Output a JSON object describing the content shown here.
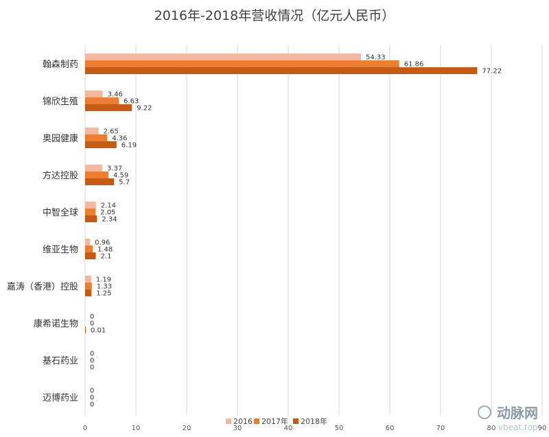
{
  "chart_data": {
    "type": "bar",
    "orientation": "horizontal",
    "title": "2016年-2018年营收情况（亿元人民币）",
    "categories": [
      "翰森制药",
      "锦欣生殖",
      "奥园健康",
      "方达控股",
      "中智全球",
      "维亚生物",
      "嘉涛（香港）控股",
      "康希诺生物",
      "基石药业",
      "迈博药业"
    ],
    "series": [
      {
        "name": "2016",
        "color": "#f4b79f",
        "values": [
          54.33,
          3.46,
          2.65,
          3.37,
          2.14,
          0.96,
          1.19,
          0,
          0,
          0
        ],
        "labels": [
          "54.33",
          "3.46",
          "2.65",
          "3.37",
          "2.14",
          "0.96",
          "1.19",
          "0",
          "0",
          "0"
        ]
      },
      {
        "name": "2017年",
        "color": "#ed7d31",
        "values": [
          61.86,
          6.63,
          4.36,
          4.59,
          2.05,
          1.48,
          1.33,
          0,
          0,
          0
        ],
        "labels": [
          "61.86",
          "6.63",
          "4.36",
          "4.59",
          "2.05",
          "1.48",
          "1.33",
          "0",
          "0",
          "0"
        ]
      },
      {
        "name": "2018年",
        "color": "#c55a11",
        "values": [
          77.22,
          9.22,
          6.19,
          5.7,
          2.34,
          2.1,
          1.25,
          0.01,
          0,
          0
        ],
        "labels": [
          "77.22",
          "9.22",
          "6.19",
          "5.7",
          "2.34",
          "2.1",
          "1.25",
          "0.01",
          "0",
          "0"
        ]
      }
    ],
    "xlim": [
      0,
      90
    ],
    "xticks": [
      0,
      10,
      20,
      30,
      40,
      50,
      60,
      70,
      80,
      90
    ],
    "grid": true,
    "legend_position": "bottom"
  },
  "watermark": {
    "text": "动脉网",
    "sub": "vbeat.top"
  }
}
